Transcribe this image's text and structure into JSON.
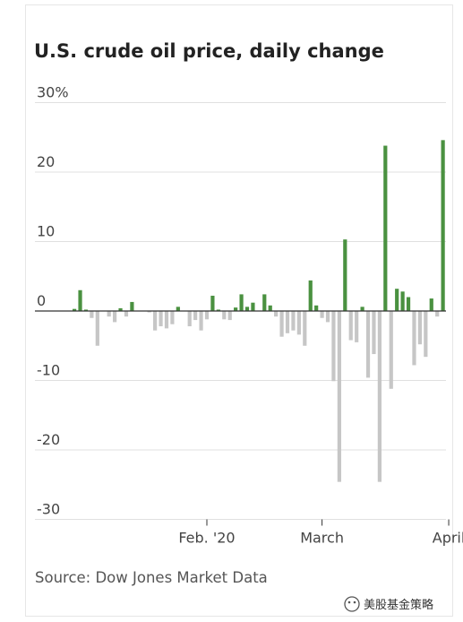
{
  "chart_data": {
    "type": "bar",
    "title": "U.S. crude oil price, daily change",
    "source": "Source: Dow Jones Market Data",
    "xlabel": "",
    "ylabel": "",
    "ylim": [
      -30,
      30
    ],
    "grid": true,
    "y_ticks": [
      {
        "value": 30,
        "label": "30%"
      },
      {
        "value": 20,
        "label": "20"
      },
      {
        "value": 10,
        "label": "10"
      },
      {
        "value": 0,
        "label": "0"
      },
      {
        "value": -10,
        "label": "-10"
      },
      {
        "value": -20,
        "label": "-20"
      },
      {
        "value": -30,
        "label": "-30"
      }
    ],
    "x_ticks": [
      {
        "index": 23,
        "label": "Feb. '20"
      },
      {
        "index": 43,
        "label": "March"
      },
      {
        "index": 65,
        "label": "April"
      }
    ],
    "values": [
      0.3,
      3.0,
      0.2,
      -1.0,
      -5.0,
      0.0,
      -0.8,
      -1.6,
      0.4,
      -0.8,
      1.3,
      0.0,
      0.0,
      -0.2,
      -2.8,
      -2.2,
      -2.5,
      -1.9,
      0.6,
      0.0,
      -2.2,
      -1.3,
      -2.8,
      -1.2,
      2.2,
      0.2,
      -1.2,
      -1.3,
      0.5,
      2.4,
      0.6,
      1.2,
      0.0,
      2.4,
      0.8,
      -0.8,
      -3.7,
      -3.2,
      -2.8,
      -3.4,
      -5.0,
      4.4,
      0.8,
      -1.0,
      -1.6,
      -10.1,
      -24.6,
      10.3,
      -4.2,
      -4.5,
      0.6,
      -9.6,
      -6.2,
      -24.6,
      23.8,
      -11.2,
      3.2,
      2.8,
      2.0,
      -7.8,
      -4.8,
      -6.6,
      1.8,
      -0.8,
      24.6
    ],
    "colors": {
      "positive": "#4a9140",
      "negative": "#c6c6c6",
      "grid": "#e0e0e0",
      "axis": "#333333"
    },
    "watermark": "美股基金策略"
  }
}
